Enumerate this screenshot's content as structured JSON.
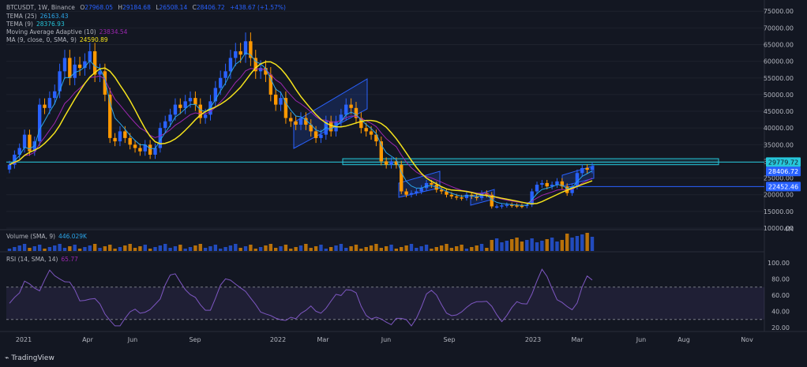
{
  "header": {
    "symbol": "BTCUSDT, 1W, Binance",
    "o_label": "O",
    "o": "27968.05",
    "h_label": "H",
    "h": "29184.68",
    "l_label": "L",
    "l": "26508.14",
    "c_label": "C",
    "c": "28406.72",
    "change": "+438.67 (+1.57%)"
  },
  "indicators": [
    {
      "name": "TEMA (25)",
      "value": "26163.43",
      "color": "#2ba5e8"
    },
    {
      "name": "TEMA (9)",
      "value": "28376.93",
      "color": "#26c6da"
    },
    {
      "name": "Moving Average Adaptive (10)",
      "value": "23834.54",
      "color": "#9c27b0"
    },
    {
      "name": "MA (9, close, 0, SMA, 9)",
      "value": "24590.89",
      "color": "#f5e31c"
    }
  ],
  "volume_label": {
    "name": "Volume (SMA, 9)",
    "value": "446.029K"
  },
  "rsi_label": {
    "name": "RSI (14, SMA, 14)",
    "value": "65.77"
  },
  "price_tags": [
    {
      "text": "29779.72",
      "bg": "#26c6da",
      "fg": "#131722"
    },
    {
      "text": "28406.72",
      "bg": "#2962ff",
      "fg": "#ffffff"
    },
    {
      "text": "22452.46",
      "bg": "#2962ff",
      "fg": "#ffffff"
    }
  ],
  "price_axis": [
    "75000.00",
    "70000.00",
    "65000.00",
    "60000.00",
    "55000.00",
    "50000.00",
    "45000.00",
    "40000.00",
    "35000.00",
    "30000.00",
    "25000.00",
    "20000.00",
    "15000.00",
    "10000.00",
    "4M"
  ],
  "rsi_axis": [
    "100.00",
    "80.00",
    "60.00",
    "40.00",
    "20.00"
  ],
  "time_axis": [
    "2021",
    "Apr",
    "Jun",
    "Sep",
    "2022",
    "Mar",
    "Jun",
    "Sep",
    "2023",
    "Mar",
    "Jun",
    "Aug",
    "Nov"
  ],
  "brand": "TradingView",
  "colors": {
    "up": "#2962ff",
    "down": "#ff9800",
    "bg": "#131722",
    "grid": "#1e222d",
    "zone": "#26c6da",
    "rsi_band": "#7e57c2"
  },
  "chart_data": {
    "type": "candlestick",
    "xlabel": "",
    "ylabel": "",
    "ylim": [
      10000,
      76000
    ],
    "time_ticks": [
      "2021",
      "Apr",
      "Jun",
      "Sep",
      "2022",
      "Mar",
      "Jun",
      "Sep",
      "2023",
      "Mar",
      "Jun",
      "Aug",
      "Nov"
    ],
    "closes": [
      29000,
      32000,
      34000,
      38000,
      33000,
      36000,
      47000,
      46000,
      49000,
      51000,
      57000,
      61000,
      55000,
      59000,
      58000,
      60000,
      63000,
      56000,
      57000,
      50000,
      37000,
      36000,
      39000,
      37000,
      35000,
      34000,
      33000,
      35000,
      32000,
      34000,
      40000,
      42000,
      44000,
      47000,
      46000,
      48000,
      49000,
      47000,
      43000,
      44000,
      48000,
      52000,
      55000,
      57000,
      61000,
      63000,
      62000,
      66000,
      61000,
      57000,
      58000,
      56000,
      50000,
      47000,
      49000,
      43000,
      42000,
      41000,
      43000,
      41000,
      39000,
      37000,
      38000,
      42000,
      39000,
      42000,
      44000,
      47000,
      46000,
      43000,
      40000,
      39000,
      38000,
      36000,
      30000,
      29000,
      30000,
      29000,
      21000,
      20000,
      20500,
      21000,
      22000,
      23500,
      23000,
      21500,
      21000,
      20000,
      19500,
      19200,
      19000,
      20000,
      19500,
      19000,
      20500,
      20000,
      16500,
      16500,
      16800,
      17000,
      16800,
      16700,
      16600,
      17000,
      21000,
      23000,
      23500,
      22500,
      23000,
      24000,
      22500,
      20500,
      22500,
      26500,
      28000,
      27500,
      28406
    ]
  }
}
